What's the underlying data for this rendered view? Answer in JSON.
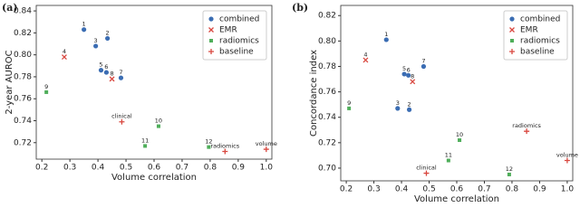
{
  "chart_data": [
    {
      "type": "scatter",
      "title": "(a)",
      "x_label": "Volume correlation",
      "y_label": "2-year AUROC",
      "xlim": [
        0.18,
        1.02
      ],
      "xticks": [
        0.2,
        0.3,
        0.4,
        0.5,
        0.6,
        0.7,
        0.8,
        0.9,
        {
          "value": 1,
          "label": "1.0"
        }
      ],
      "ylim": [
        0.705,
        0.845
      ],
      "yticks": [
        0.72,
        0.74,
        0.76,
        0.78,
        {
          "value": 0.8,
          "label": "0.80"
        },
        0.82,
        0.84
      ],
      "legend": "upper right",
      "series": [
        {
          "name": "combined",
          "color": "#3b6db3",
          "marker": "circle",
          "x": [
            0.35,
            0.434,
            0.392,
            0.411,
            0.43,
            0.482
          ],
          "values": [
            0.823,
            0.815,
            0.808,
            0.786,
            0.784,
            0.779
          ],
          "labels": [
            "1",
            "2",
            "3",
            "5",
            "6",
            "7"
          ]
        },
        {
          "name": "EMR",
          "color": "#d9473f",
          "marker": "x",
          "x": [
            0.28,
            0.45
          ],
          "values": [
            0.798,
            0.778
          ],
          "labels": [
            "4",
            "8"
          ]
        },
        {
          "name": "radiomics",
          "color": "#4fae5a",
          "marker": "square",
          "x": [
            0.216,
            0.616,
            0.568,
            0.795
          ],
          "values": [
            0.766,
            0.735,
            0.717,
            0.716
          ],
          "labels": [
            "9",
            "10",
            "11",
            "12"
          ]
        },
        {
          "name": "baseline",
          "color": "#d9473f",
          "marker": "plus",
          "x": [
            0.485,
            0.853,
            1.0
          ],
          "values": [
            0.739,
            0.712,
            0.714
          ],
          "labels": [
            "clinical",
            "radiomics",
            "volume"
          ]
        }
      ]
    },
    {
      "type": "scatter",
      "title": "(b)",
      "x_label": "Volume correlation",
      "y_label": "Concordance index",
      "xlim": [
        0.18,
        1.02
      ],
      "xticks": [
        0.2,
        0.3,
        0.4,
        0.5,
        0.6,
        0.7,
        0.8,
        0.9,
        {
          "value": 1,
          "label": "1.0"
        }
      ],
      "ylim": [
        0.69,
        0.828
      ],
      "yticks": [
        {
          "value": 0.7,
          "label": "0.70"
        },
        0.72,
        0.74,
        0.76,
        0.78,
        {
          "value": 0.8,
          "label": "0.80"
        },
        0.82
      ],
      "legend": "upper right",
      "series": [
        {
          "name": "combined",
          "color": "#3b6db3",
          "marker": "circle",
          "x": [
            0.345,
            0.428,
            0.386,
            0.41,
            0.425,
            0.48
          ],
          "values": [
            0.801,
            0.746,
            0.747,
            0.774,
            0.773,
            0.78
          ],
          "labels": [
            "1",
            "2",
            "3",
            "5",
            "6",
            "7"
          ]
        },
        {
          "name": "EMR",
          "color": "#d9473f",
          "marker": "x",
          "x": [
            0.27,
            0.44
          ],
          "values": [
            0.785,
            0.768
          ],
          "labels": [
            "4",
            "8"
          ]
        },
        {
          "name": "radiomics",
          "color": "#4fae5a",
          "marker": "square",
          "x": [
            0.21,
            0.61,
            0.57,
            0.79
          ],
          "values": [
            0.747,
            0.722,
            0.706,
            0.695
          ],
          "labels": [
            "9",
            "10",
            "11",
            "12"
          ]
        },
        {
          "name": "baseline",
          "color": "#d9473f",
          "marker": "plus",
          "x": [
            0.49,
            0.853,
            1.0
          ],
          "values": [
            0.696,
            0.729,
            0.706
          ],
          "labels": [
            "clinical",
            "radiomics",
            "volume"
          ]
        }
      ]
    }
  ]
}
